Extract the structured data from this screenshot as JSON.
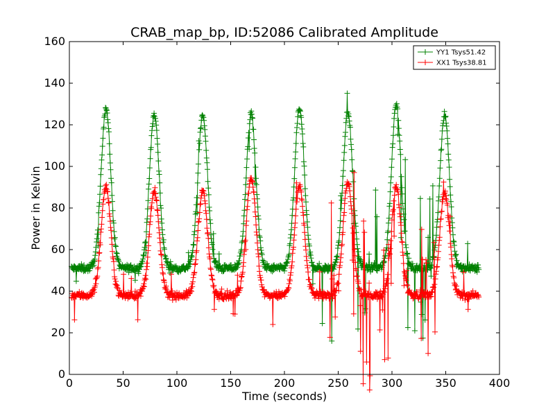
{
  "chart_data": {
    "type": "line",
    "title": "CRAB_map_bp, ID:52086 Calibrated Amplitude",
    "xlabel": "Time (seconds)",
    "ylabel": "Power in Kelvin",
    "xlim": [
      0,
      400
    ],
    "ylim": [
      0,
      160
    ],
    "xticks": [
      0,
      50,
      100,
      150,
      200,
      250,
      300,
      350,
      400
    ],
    "yticks": [
      0,
      20,
      40,
      60,
      80,
      100,
      120,
      140,
      160
    ],
    "grid": false,
    "legend_position": "top-right",
    "marker": "plus",
    "series": [
      {
        "name": "YY1 Tsys51.42",
        "color": "#008000",
        "baseline": 51,
        "peak_times": [
          34,
          79,
          124,
          169,
          214,
          259,
          304,
          349
        ],
        "peak_values": [
          128,
          125,
          125,
          125,
          128,
          126,
          130,
          125
        ],
        "peak_width": 4.5
      },
      {
        "name": "XX1 Tsys38.81",
        "color": "#ff0000",
        "baseline": 38,
        "peak_times": [
          34,
          79,
          124,
          169,
          214,
          259,
          304,
          349
        ],
        "peak_values": [
          90,
          88,
          88,
          95,
          90,
          92,
          90,
          88
        ],
        "peak_width": 4.5
      }
    ],
    "x_range": [
      2,
      381
    ]
  }
}
